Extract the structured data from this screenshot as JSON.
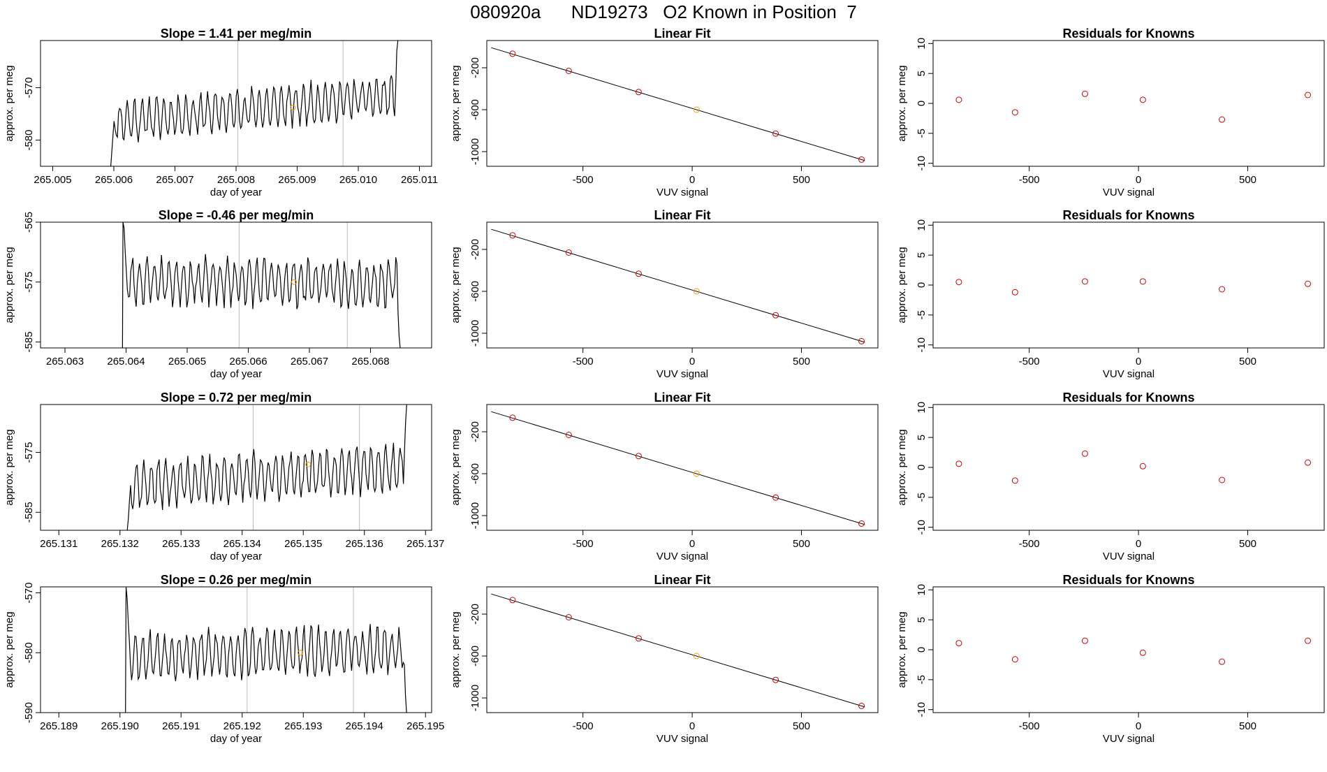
{
  "figure": {
    "title": "080920a      ND19273   O2 Known in Position  7"
  },
  "colors": {
    "trace": "#000000",
    "known_point": "#cc0000",
    "sample_point": "#ff9900",
    "vline": "#bbbbbb"
  },
  "chart_data": [
    {
      "type": "line",
      "row": 0,
      "col": 0,
      "title": "Slope =  1.41  per meg/min",
      "xlabel": "day of year",
      "ylabel": "approx. per meg",
      "xlim": [
        265.0048,
        265.0112
      ],
      "ylim": [
        -585,
        -561
      ],
      "xticks": [
        265.005,
        265.006,
        265.007,
        265.008,
        265.009,
        265.01,
        265.011
      ],
      "xtick_labels": [
        "265.005",
        "265.006",
        "265.007",
        "265.008",
        "265.009",
        "265.010",
        "265.011"
      ],
      "yticks": [
        -580,
        -570
      ],
      "ytick_labels": [
        "-580",
        "-570"
      ],
      "vlines": [
        265.00803,
        265.00975
      ],
      "highlight_point": {
        "x": 265.00893,
        "y": -573.8
      },
      "trace": {
        "start": 265.00595,
        "end": 265.01065,
        "base": -574.0,
        "drift": 5.0,
        "amp": 3.5,
        "period": 0.00012,
        "noise": 1.2,
        "seed": 11,
        "entry": [
          -585,
          -582,
          -579
        ],
        "exit": [
          -570,
          -563,
          -561
        ]
      }
    },
    {
      "type": "scatter",
      "row": 0,
      "col": 1,
      "title": "Linear Fit",
      "xlabel": "VUV signal",
      "ylabel": "approx. per meg",
      "xlim": [
        -940,
        850
      ],
      "ylim": [
        -1140,
        60
      ],
      "xticks": [
        -500,
        0,
        500
      ],
      "xtick_labels": [
        "-500",
        "0",
        "500"
      ],
      "yticks": [
        -1000,
        -600,
        -200
      ],
      "ytick_labels": [
        "-1000",
        "-600",
        "-200"
      ],
      "fit_line": {
        "x": [
          -920,
          790
        ],
        "y": [
          -8,
          -1086
        ]
      },
      "points": [
        {
          "x": -822,
          "y": -66,
          "kind": "known"
        },
        {
          "x": -565,
          "y": -230,
          "kind": "known"
        },
        {
          "x": -245,
          "y": -432,
          "kind": "known"
        },
        {
          "x": 20,
          "y": -600,
          "kind": "sample"
        },
        {
          "x": 382,
          "y": -828,
          "kind": "known"
        },
        {
          "x": 775,
          "y": -1076,
          "kind": "known"
        }
      ]
    },
    {
      "type": "scatter",
      "row": 0,
      "col": 2,
      "title": "Residuals for Knowns",
      "xlabel": "VUV signal",
      "ylabel": "approx. per meg",
      "xlim": [
        -940,
        850
      ],
      "ylim": [
        -10.5,
        10.5
      ],
      "xticks": [
        -500,
        0,
        500
      ],
      "xtick_labels": [
        "-500",
        "0",
        "500"
      ],
      "yticks": [
        -10,
        -5,
        0,
        5,
        10
      ],
      "ytick_labels": [
        "-10",
        "-5",
        "0",
        "5",
        "10"
      ],
      "points": [
        {
          "x": -822,
          "y": 0.6,
          "kind": "known"
        },
        {
          "x": -565,
          "y": -1.5,
          "kind": "known"
        },
        {
          "x": -245,
          "y": 1.6,
          "kind": "known"
        },
        {
          "x": 20,
          "y": 0.6,
          "kind": "known"
        },
        {
          "x": 382,
          "y": -2.7,
          "kind": "known"
        },
        {
          "x": 775,
          "y": 1.4,
          "kind": "known"
        }
      ]
    },
    {
      "type": "line",
      "row": 1,
      "col": 0,
      "title": "Slope =  -0.46  per meg/min",
      "xlabel": "day of year",
      "ylabel": "approx. per meg",
      "xlim": [
        265.0626,
        265.069
      ],
      "ylim": [
        -586,
        -565
      ],
      "xticks": [
        265.063,
        265.064,
        265.065,
        265.066,
        265.067,
        265.068
      ],
      "xtick_labels": [
        "265.063",
        "265.064",
        "265.065",
        "265.066",
        "265.067",
        "265.068"
      ],
      "yticks": [
        -585,
        -575,
        -565
      ],
      "ytick_labels": [
        "-585",
        "-575",
        "-565"
      ],
      "vlines": [
        265.06585,
        265.06762
      ],
      "highlight_point": {
        "x": 265.06675,
        "y": -575.0
      },
      "trace": {
        "start": 265.06395,
        "end": 265.0685,
        "base": -575.0,
        "drift": -0.5,
        "amp": 3.5,
        "period": 0.00012,
        "noise": 1.2,
        "seed": 23,
        "entry": [
          -565,
          -566,
          -570,
          -573
        ],
        "exit": [
          -580,
          -584,
          -586
        ]
      }
    },
    {
      "type": "scatter",
      "row": 1,
      "col": 1,
      "title": "Linear Fit",
      "xlabel": "VUV signal",
      "ylabel": "approx. per meg",
      "xlim": [
        -940,
        850
      ],
      "ylim": [
        -1140,
        60
      ],
      "xticks": [
        -500,
        0,
        500
      ],
      "xtick_labels": [
        "-500",
        "0",
        "500"
      ],
      "yticks": [
        -1000,
        -600,
        -200
      ],
      "ytick_labels": [
        "-1000",
        "-600",
        "-200"
      ],
      "fit_line": {
        "x": [
          -920,
          790
        ],
        "y": [
          -8,
          -1086
        ]
      },
      "points": [
        {
          "x": -822,
          "y": -66,
          "kind": "known"
        },
        {
          "x": -565,
          "y": -230,
          "kind": "known"
        },
        {
          "x": -245,
          "y": -432,
          "kind": "known"
        },
        {
          "x": 20,
          "y": -600,
          "kind": "sample"
        },
        {
          "x": 382,
          "y": -828,
          "kind": "known"
        },
        {
          "x": 775,
          "y": -1076,
          "kind": "known"
        }
      ]
    },
    {
      "type": "scatter",
      "row": 1,
      "col": 2,
      "title": "Residuals for Knowns",
      "xlabel": "VUV signal",
      "ylabel": "approx. per meg",
      "xlim": [
        -940,
        850
      ],
      "ylim": [
        -10.5,
        10.5
      ],
      "xticks": [
        -500,
        0,
        500
      ],
      "xtick_labels": [
        "-500",
        "0",
        "500"
      ],
      "yticks": [
        -10,
        -5,
        0,
        5,
        10
      ],
      "ytick_labels": [
        "-10",
        "-5",
        "0",
        "5",
        "10"
      ],
      "points": [
        {
          "x": -822,
          "y": 0.5,
          "kind": "known"
        },
        {
          "x": -565,
          "y": -1.2,
          "kind": "known"
        },
        {
          "x": -245,
          "y": 0.6,
          "kind": "known"
        },
        {
          "x": 20,
          "y": 0.6,
          "kind": "known"
        },
        {
          "x": 382,
          "y": -0.7,
          "kind": "known"
        },
        {
          "x": 775,
          "y": 0.2,
          "kind": "known"
        }
      ]
    },
    {
      "type": "line",
      "row": 2,
      "col": 0,
      "title": "Slope =  0.72  per meg/min",
      "xlabel": "day of year",
      "ylabel": "approx. per meg",
      "xlim": [
        265.1307,
        265.1371
      ],
      "ylim": [
        -588,
        -567
      ],
      "xticks": [
        265.131,
        265.132,
        265.133,
        265.134,
        265.135,
        265.136,
        265.137
      ],
      "xtick_labels": [
        "265.131",
        "265.132",
        "265.133",
        "265.134",
        "265.135",
        "265.136",
        "265.137"
      ],
      "yticks": [
        -585,
        -575
      ],
      "ytick_labels": [
        "-585",
        "-575"
      ],
      "vlines": [
        265.13418,
        265.13592
      ],
      "highlight_point": {
        "x": 265.13508,
        "y": -577.0
      },
      "trace": {
        "start": 265.13212,
        "end": 265.1367,
        "base": -579.0,
        "drift": 3.0,
        "amp": 3.5,
        "period": 0.00012,
        "noise": 1.2,
        "seed": 37,
        "entry": [
          -588,
          -586,
          -583
        ],
        "exit": [
          -575,
          -570,
          -567
        ]
      }
    },
    {
      "type": "scatter",
      "row": 2,
      "col": 1,
      "title": "Linear Fit",
      "xlabel": "VUV signal",
      "ylabel": "approx. per meg",
      "xlim": [
        -940,
        850
      ],
      "ylim": [
        -1140,
        60
      ],
      "xticks": [
        -500,
        0,
        500
      ],
      "xtick_labels": [
        "-500",
        "0",
        "500"
      ],
      "yticks": [
        -1000,
        -600,
        -200
      ],
      "ytick_labels": [
        "-1000",
        "-600",
        "-200"
      ],
      "fit_line": {
        "x": [
          -920,
          790
        ],
        "y": [
          -8,
          -1086
        ]
      },
      "points": [
        {
          "x": -822,
          "y": -66,
          "kind": "known"
        },
        {
          "x": -565,
          "y": -230,
          "kind": "known"
        },
        {
          "x": -245,
          "y": -432,
          "kind": "known"
        },
        {
          "x": 20,
          "y": -600,
          "kind": "sample"
        },
        {
          "x": 382,
          "y": -828,
          "kind": "known"
        },
        {
          "x": 775,
          "y": -1076,
          "kind": "known"
        }
      ]
    },
    {
      "type": "scatter",
      "row": 2,
      "col": 2,
      "title": "Residuals for Knowns",
      "xlabel": "VUV signal",
      "ylabel": "approx. per meg",
      "xlim": [
        -940,
        850
      ],
      "ylim": [
        -10.5,
        10.5
      ],
      "xticks": [
        -500,
        0,
        500
      ],
      "xtick_labels": [
        "-500",
        "0",
        "500"
      ],
      "yticks": [
        -10,
        -5,
        0,
        5,
        10
      ],
      "ytick_labels": [
        "-10",
        "-5",
        "0",
        "5",
        "10"
      ],
      "points": [
        {
          "x": -822,
          "y": 0.6,
          "kind": "known"
        },
        {
          "x": -565,
          "y": -2.2,
          "kind": "known"
        },
        {
          "x": -245,
          "y": 2.3,
          "kind": "known"
        },
        {
          "x": 20,
          "y": 0.2,
          "kind": "known"
        },
        {
          "x": 382,
          "y": -2.1,
          "kind": "known"
        },
        {
          "x": 775,
          "y": 0.8,
          "kind": "known"
        }
      ]
    },
    {
      "type": "line",
      "row": 3,
      "col": 0,
      "title": "Slope =  0.26  per meg/min",
      "xlabel": "day of year",
      "ylabel": "approx. per meg",
      "xlim": [
        265.1887,
        265.1951
      ],
      "ylim": [
        -590,
        -569
      ],
      "xticks": [
        265.189,
        265.19,
        265.191,
        265.192,
        265.193,
        265.194,
        265.195
      ],
      "xtick_labels": [
        "265.189",
        "265.190",
        "265.191",
        "265.192",
        "265.193",
        "265.194",
        "265.195"
      ],
      "yticks": [
        -590,
        -580,
        -570
      ],
      "ytick_labels": [
        "-590",
        "-580",
        "-570"
      ],
      "vlines": [
        265.19208,
        265.19382
      ],
      "highlight_point": {
        "x": 265.19295,
        "y": -580.0
      },
      "trace": {
        "start": 265.1901,
        "end": 265.1947,
        "base": -580.0,
        "drift": 1.0,
        "amp": 3.5,
        "period": 0.00012,
        "noise": 1.2,
        "seed": 53,
        "entry": [
          -569,
          -571,
          -575,
          -578
        ],
        "exit": [
          -582,
          -587,
          -590
        ]
      }
    },
    {
      "type": "scatter",
      "row": 3,
      "col": 1,
      "title": "Linear Fit",
      "xlabel": "VUV signal",
      "ylabel": "approx. per meg",
      "xlim": [
        -940,
        850
      ],
      "ylim": [
        -1140,
        60
      ],
      "xticks": [
        -500,
        0,
        500
      ],
      "xtick_labels": [
        "-500",
        "0",
        "500"
      ],
      "yticks": [
        -1000,
        -600,
        -200
      ],
      "ytick_labels": [
        "-1000",
        "-600",
        "-200"
      ],
      "fit_line": {
        "x": [
          -920,
          790
        ],
        "y": [
          -8,
          -1086
        ]
      },
      "points": [
        {
          "x": -822,
          "y": -66,
          "kind": "known"
        },
        {
          "x": -565,
          "y": -230,
          "kind": "known"
        },
        {
          "x": -245,
          "y": -432,
          "kind": "known"
        },
        {
          "x": 20,
          "y": -600,
          "kind": "sample"
        },
        {
          "x": 382,
          "y": -828,
          "kind": "known"
        },
        {
          "x": 775,
          "y": -1076,
          "kind": "known"
        }
      ]
    },
    {
      "type": "scatter",
      "row": 3,
      "col": 2,
      "title": "Residuals for Knowns",
      "xlabel": "VUV signal",
      "ylabel": "approx. per meg",
      "xlim": [
        -940,
        850
      ],
      "ylim": [
        -10.5,
        10.5
      ],
      "xticks": [
        -500,
        0,
        500
      ],
      "xtick_labels": [
        "-500",
        "0",
        "500"
      ],
      "yticks": [
        -10,
        -5,
        0,
        5,
        10
      ],
      "ytick_labels": [
        "-10",
        "-5",
        "0",
        "5",
        "10"
      ],
      "points": [
        {
          "x": -822,
          "y": 1.1,
          "kind": "known"
        },
        {
          "x": -565,
          "y": -1.6,
          "kind": "known"
        },
        {
          "x": -245,
          "y": 1.5,
          "kind": "known"
        },
        {
          "x": 20,
          "y": -0.5,
          "kind": "known"
        },
        {
          "x": 382,
          "y": -2.0,
          "kind": "known"
        },
        {
          "x": 775,
          "y": 1.5,
          "kind": "known"
        }
      ]
    }
  ]
}
